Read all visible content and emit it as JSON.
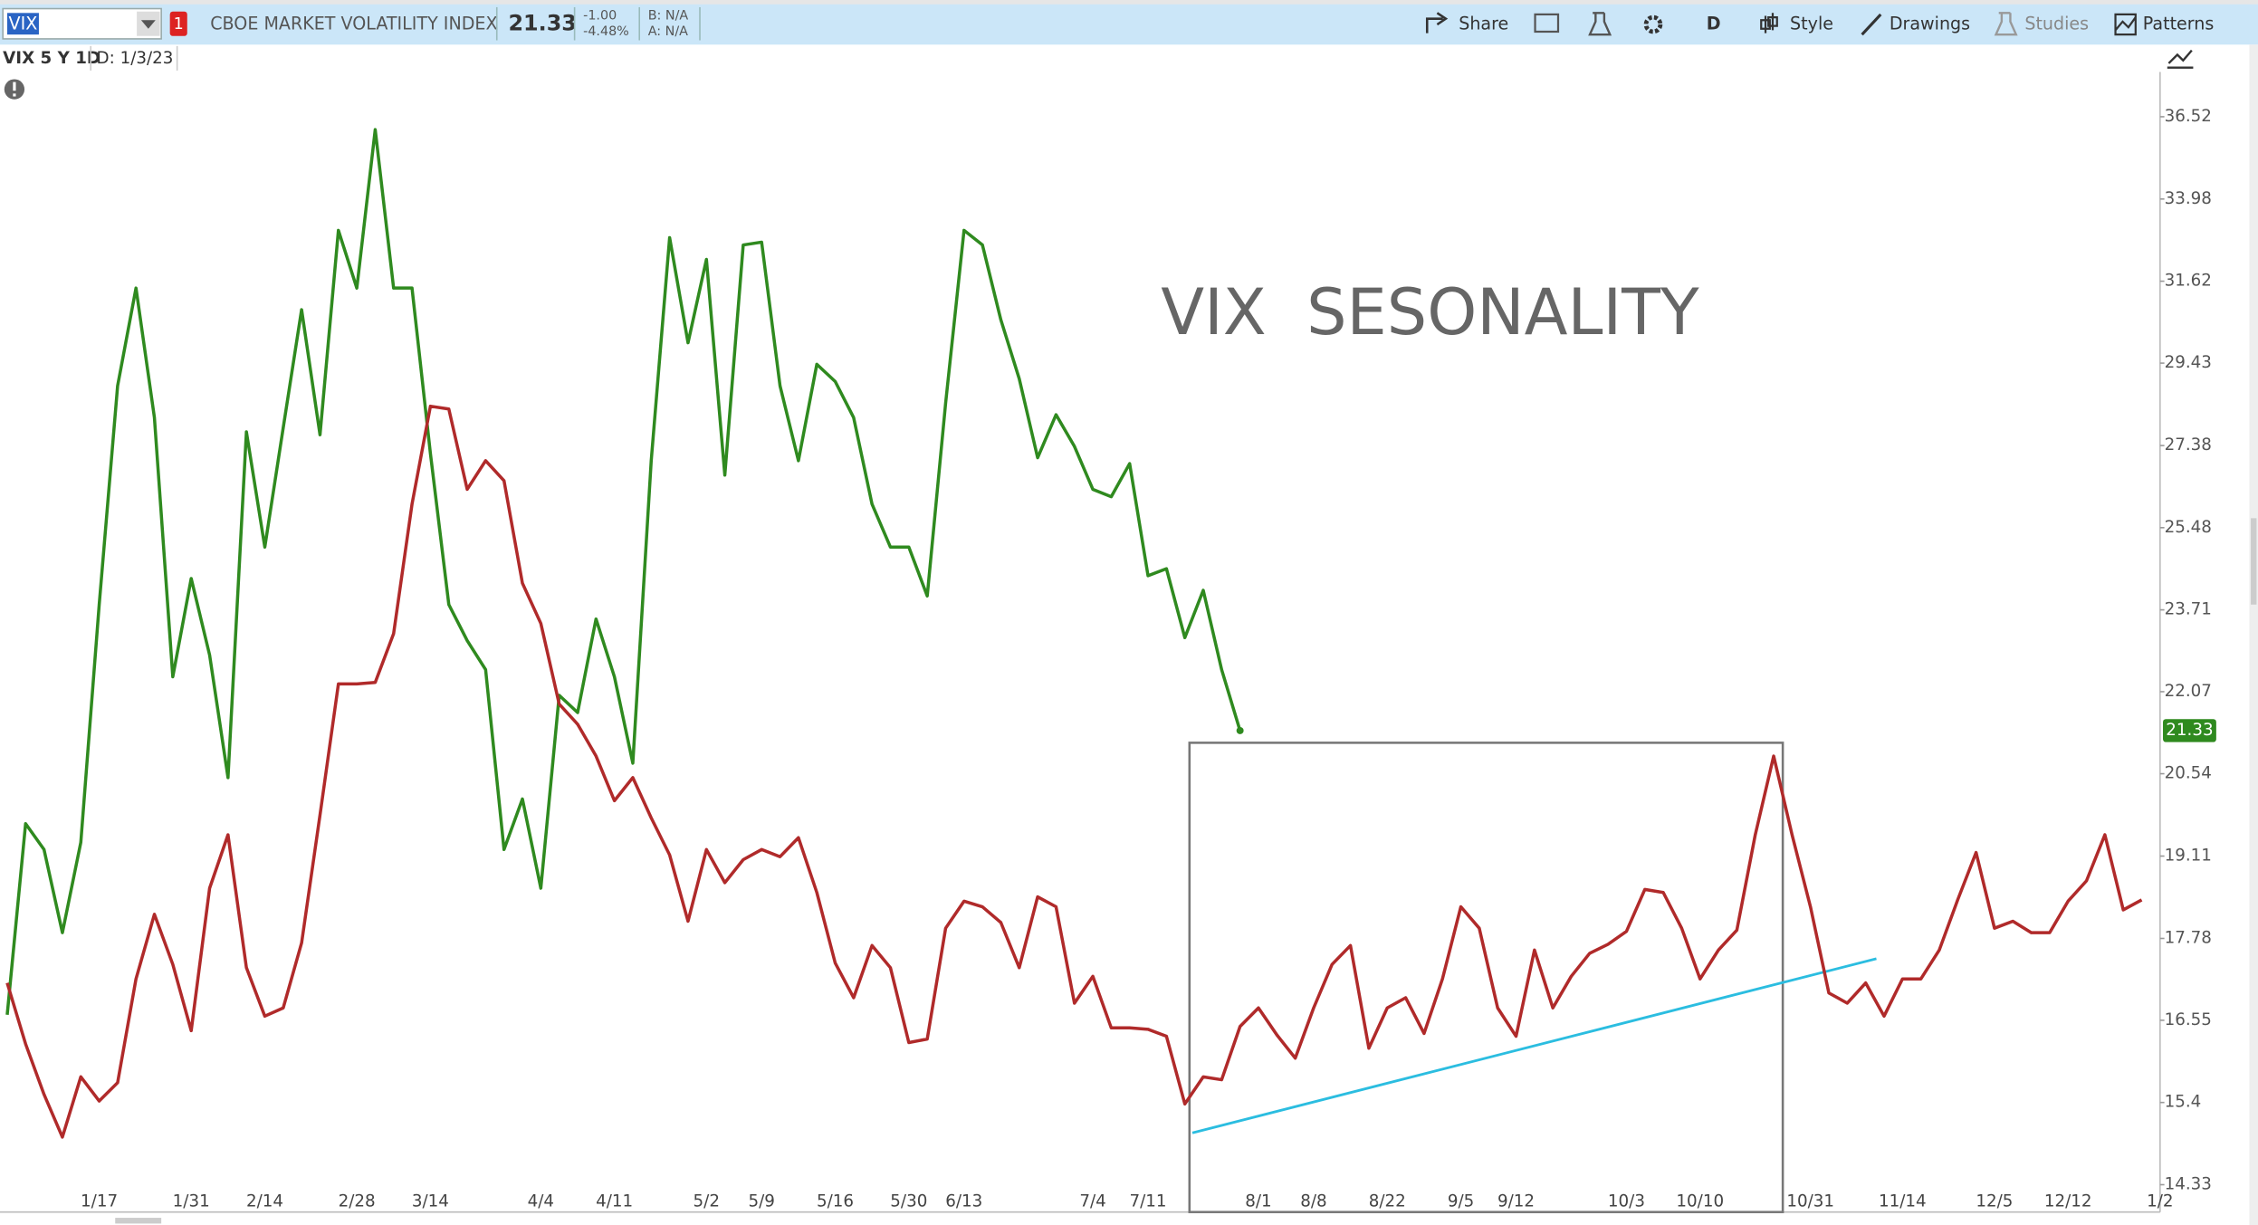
{
  "toolbar": {
    "symbol": "VIX",
    "alert_count": "1",
    "instrument": "CBOE MARKET VOLATILITY INDEX",
    "last": "21.33",
    "change": "-1.00",
    "change_pct": "-4.48%",
    "bid": "B: N/A",
    "ask": "A: N/A",
    "share": "Share",
    "period": "D",
    "style": "Style",
    "drawings": "Drawings",
    "studies": "Studies",
    "patterns": "Patterns"
  },
  "chart_header": {
    "label": "VIX 5 Y 1D",
    "date": "D: 1/3/23"
  },
  "chart_data": {
    "type": "line",
    "title": "VIX  SESONALITY",
    "log_scale": true,
    "categories": [
      null,
      null,
      null,
      null,
      null,
      "1/17",
      null,
      null,
      null,
      null,
      "1/31",
      null,
      null,
      null,
      "2/14",
      null,
      null,
      null,
      null,
      "2/28",
      null,
      null,
      null,
      "3/14",
      null,
      null,
      null,
      null,
      null,
      "4/4",
      null,
      null,
      null,
      "4/11",
      null,
      null,
      null,
      null,
      "5/2",
      null,
      null,
      "5/9",
      null,
      null,
      null,
      "5/16",
      null,
      null,
      null,
      "5/30",
      null,
      null,
      "6/13",
      null,
      null,
      null,
      null,
      null,
      null,
      "7/4",
      null,
      null,
      "7/11",
      null,
      null,
      null,
      null,
      null,
      "8/1",
      null,
      null,
      "8/8",
      null,
      null,
      null,
      "8/22",
      null,
      null,
      null,
      "9/5",
      null,
      null,
      "9/12",
      null,
      null,
      null,
      null,
      null,
      "10/3",
      null,
      null,
      null,
      "10/10",
      null,
      null,
      null,
      null,
      null,
      "10/31",
      null,
      null,
      null,
      null,
      "11/14",
      null,
      null,
      null,
      null,
      "12/5",
      null,
      null,
      null,
      "12/12",
      null,
      null,
      null,
      null,
      "1/2"
    ],
    "series": [
      {
        "color": "#2f8a1f",
        "values": [
          16.63,
          19.66,
          19.22,
          17.87,
          19.34,
          23.82,
          28.85,
          31.43,
          28.06,
          22.36,
          24.37,
          22.79,
          20.47,
          27.71,
          25.05,
          27.81,
          30.84,
          27.64,
          33.06,
          31.43,
          36.11,
          31.43,
          31.43,
          27.19,
          23.82,
          23.08,
          22.5,
          19.22,
          20.09,
          18.58,
          22.0,
          21.67,
          23.52,
          22.36,
          20.73,
          27.02,
          32.85,
          29.96,
          32.23,
          26.68,
          32.64,
          32.72,
          28.85,
          27.02,
          29.4,
          28.96,
          28.06,
          26.01,
          25.05,
          25.05,
          24.0,
          28.42,
          33.06,
          32.64,
          30.57,
          29.03,
          27.09,
          28.13,
          27.36,
          26.35,
          26.18,
          26.95,
          24.43,
          24.58,
          23.14,
          24.12,
          22.5,
          21.33,
          null,
          null,
          null,
          null,
          null,
          null,
          null,
          null,
          null,
          null,
          null,
          null,
          null,
          null,
          null,
          null,
          null,
          null,
          null,
          null,
          null,
          null,
          null,
          null,
          null,
          null,
          null,
          null,
          null,
          null,
          null,
          null,
          null,
          null,
          null,
          null,
          null,
          null,
          null,
          null,
          null,
          null,
          null,
          null,
          null,
          null,
          null,
          null,
          null,
          null
        ]
      },
      {
        "color": "#b02a2a",
        "values": [
          17.1,
          16.21,
          15.51,
          14.94,
          15.75,
          15.42,
          15.67,
          17.16,
          18.16,
          17.38,
          16.4,
          18.58,
          19.47,
          17.33,
          16.61,
          16.73,
          17.71,
          19.81,
          22.22,
          22.22,
          22.25,
          23.22,
          26.01,
          28.34,
          28.27,
          26.35,
          27.02,
          26.55,
          24.27,
          23.43,
          21.83,
          21.45,
          20.86,
          20.06,
          20.47,
          19.76,
          19.13,
          18.05,
          19.22,
          18.67,
          19.05,
          19.22,
          19.1,
          19.42,
          18.51,
          17.4,
          16.88,
          17.67,
          17.33,
          16.23,
          16.28,
          17.94,
          18.37,
          18.28,
          18.03,
          17.33,
          18.44,
          18.28,
          16.8,
          17.2,
          16.44,
          16.44,
          16.42,
          16.32,
          15.38,
          15.75,
          15.71,
          16.46,
          16.73,
          16.34,
          16.01,
          16.73,
          17.38,
          17.67,
          16.15,
          16.73,
          16.88,
          16.36,
          17.16,
          18.28,
          17.94,
          16.73,
          16.32,
          17.6,
          16.73,
          17.2,
          17.55,
          17.69,
          17.89,
          18.56,
          18.51,
          17.94,
          17.16,
          17.6,
          17.91,
          19.47,
          20.86,
          19.47,
          18.28,
          16.95,
          16.8,
          17.1,
          16.61,
          17.16,
          17.16,
          17.6,
          18.39,
          19.17,
          17.94,
          18.05,
          17.87,
          17.87,
          18.37,
          18.7,
          19.47,
          18.23,
          18.39,
          null
        ]
      }
    ],
    "ylim": [
      14.24,
      37.98
    ],
    "yticks": [
      14.33,
      15.4,
      16.55,
      17.78,
      19.11,
      20.54,
      22.07,
      23.71,
      25.48,
      27.38,
      29.43,
      31.62,
      33.98,
      36.52
    ]
  }
}
